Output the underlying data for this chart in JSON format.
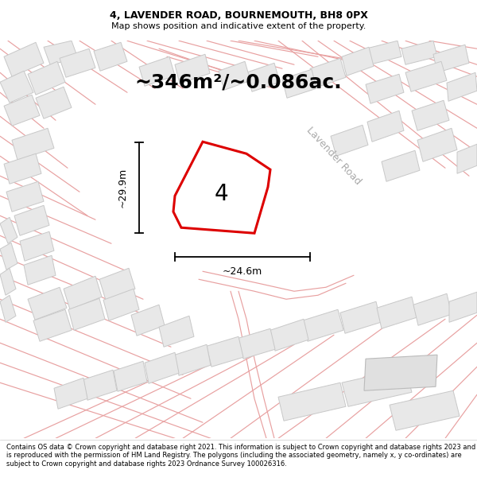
{
  "title_line1": "4, LAVENDER ROAD, BOURNEMOUTH, BH8 0PX",
  "title_line2": "Map shows position and indicative extent of the property.",
  "area_text": "~346m²/~0.086ac.",
  "dimension_width": "~24.6m",
  "dimension_height": "~29.9m",
  "label_number": "4",
  "road_label": "Lavender Road",
  "footer_text": "Contains OS data © Crown copyright and database right 2021. This information is subject to Crown copyright and database rights 2023 and is reproduced with the permission of HM Land Registry. The polygons (including the associated geometry, namely x, y co-ordinates) are subject to Crown copyright and database rights 2023 Ordnance Survey 100026316.",
  "map_bg_color": "#ffffff",
  "plot_fill_color": "#ffffff",
  "plot_edge_color": "#dd0000",
  "road_line_color": "#e8a0a0",
  "parcel_line_color": "#d08080",
  "building_fill_color": "#e8e8e8",
  "building_edge_color": "#c8c8c8",
  "title_fontsize": 9,
  "subtitle_fontsize": 8,
  "area_fontsize": 18,
  "label_fontsize": 20,
  "road_label_fontsize": 9,
  "dim_fontsize": 9,
  "footer_fontsize": 6
}
